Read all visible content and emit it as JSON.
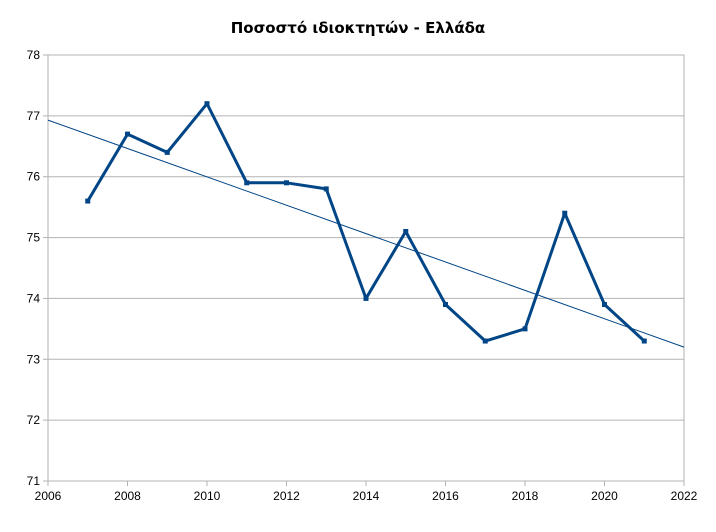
{
  "chart_data": {
    "type": "line",
    "title": "Ποσοστό ιδιοκτητών - Ελλάδα",
    "xlabel": "",
    "ylabel": "",
    "xlim": [
      2006,
      2022
    ],
    "ylim": [
      71,
      78
    ],
    "x_ticks": [
      "2006",
      "2008",
      "2010",
      "2012",
      "2014",
      "2016",
      "2018",
      "2020",
      "2022"
    ],
    "y_ticks": [
      "71",
      "72",
      "73",
      "74",
      "75",
      "76",
      "77",
      "78"
    ],
    "grid": true,
    "legend": "none",
    "series": [
      {
        "x": [
          2007,
          2008,
          2009,
          2010,
          2011,
          2012,
          2013,
          2014,
          2015,
          2016,
          2017,
          2018,
          2019,
          2020,
          2021
        ],
        "y": [
          75.6,
          76.7,
          76.4,
          77.2,
          75.9,
          75.9,
          75.8,
          74.0,
          75.1,
          73.9,
          73.3,
          73.5,
          75.4,
          73.9,
          73.3
        ],
        "color": "#004586"
      }
    ],
    "trendline": {
      "type": "linear",
      "x": [
        2006,
        2022
      ],
      "y": [
        76.93,
        73.2
      ],
      "color": "#004586"
    }
  }
}
